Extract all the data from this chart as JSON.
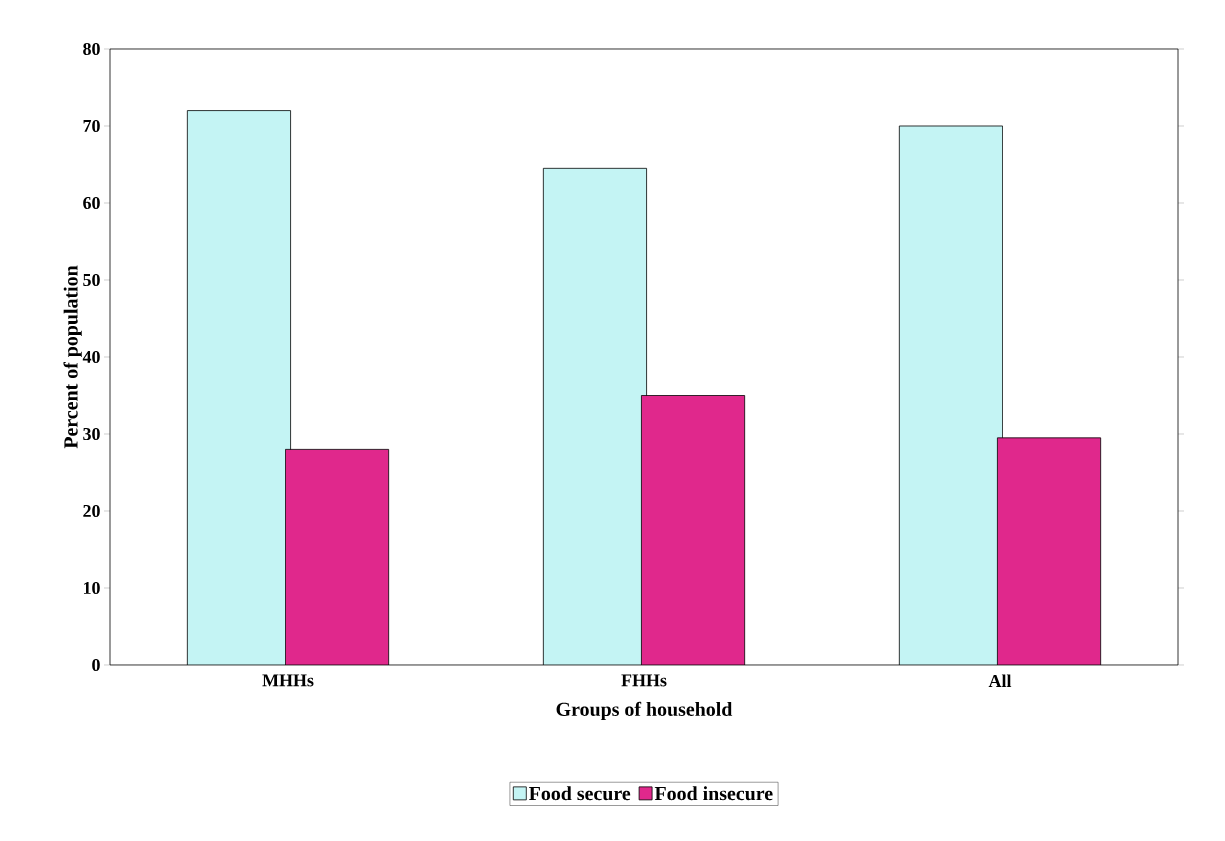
{
  "chart_data": {
    "type": "bar",
    "xlabel": "Groups of household",
    "ylabel": "Percent of population",
    "categories": [
      "MHHs",
      "FHHs",
      "All"
    ],
    "series": [
      {
        "name": "Food secure",
        "color": "#c4f4f4",
        "values": [
          72,
          64.5,
          70
        ]
      },
      {
        "name": "Food insecure",
        "color": "#e0288c",
        "values": [
          28,
          35,
          29.5
        ]
      }
    ],
    "ylim": [
      0,
      80
    ],
    "yticks": [
      0,
      10,
      20,
      30,
      40,
      50,
      60,
      70,
      80
    ],
    "legend": "bottom"
  }
}
